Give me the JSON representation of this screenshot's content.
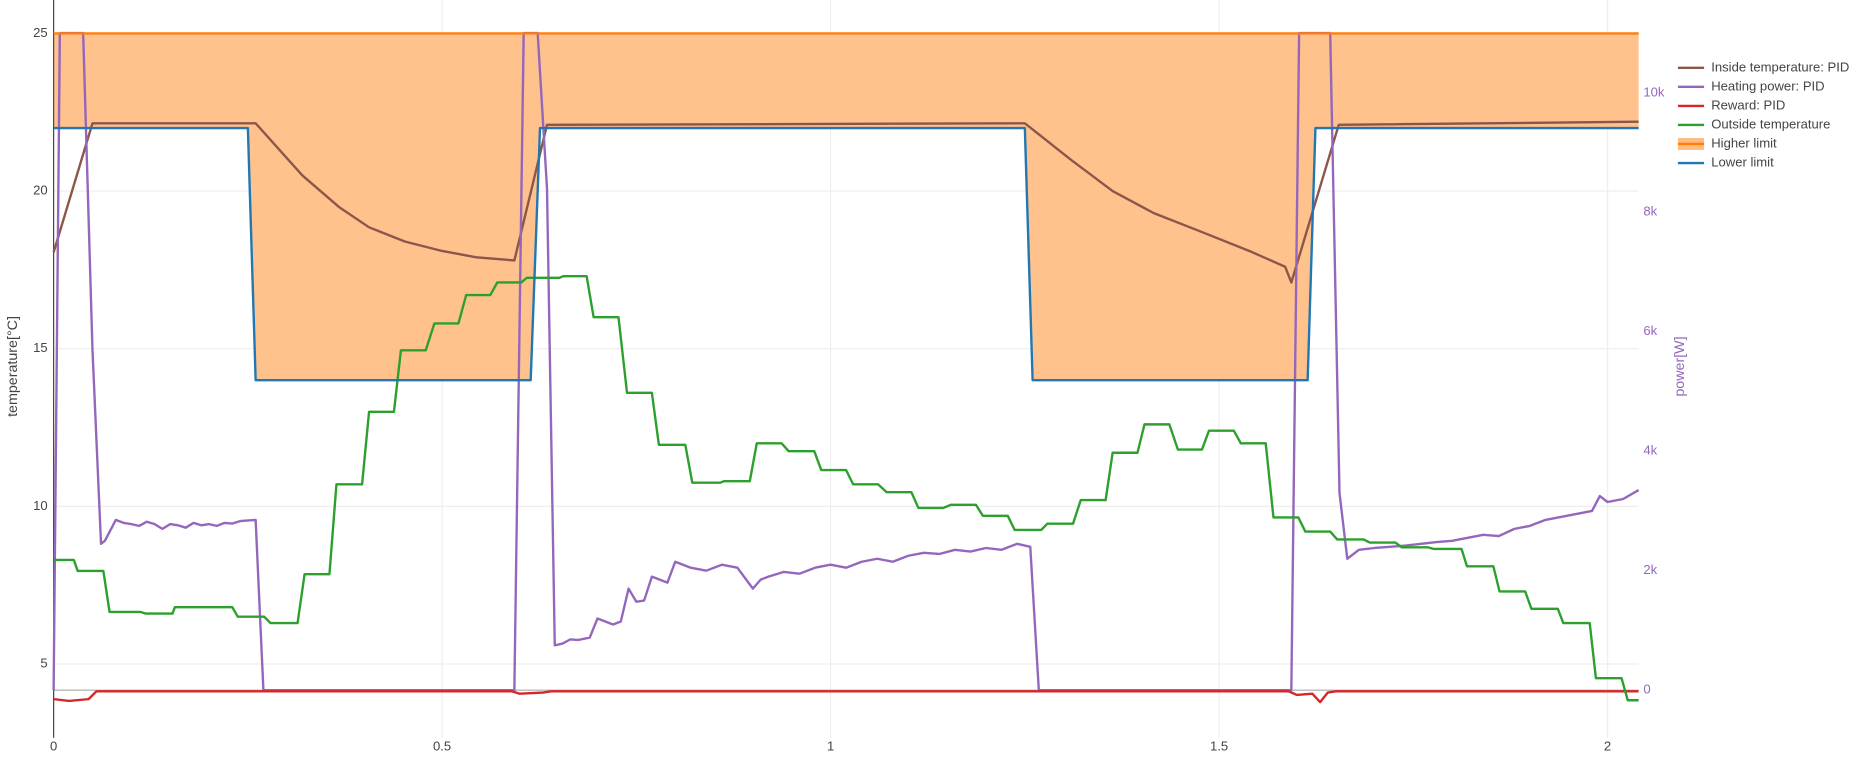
{
  "chart_data": {
    "type": "line",
    "y_title": "temperature[°C]",
    "y2_title": "power[W]",
    "xlim": [
      0,
      2.04
    ],
    "xticks": [
      0,
      0.5,
      1,
      1.5,
      2
    ],
    "ylim": [
      2.66,
      26.06
    ],
    "yticks": [
      5,
      10,
      15,
      20,
      25
    ],
    "y2lim": [
      -797,
      11554
    ],
    "y2ticks": [
      0,
      {
        "value": 2000,
        "label": "2k"
      },
      {
        "value": 4000,
        "label": "4k"
      },
      {
        "value": 6000,
        "label": "6k"
      },
      {
        "value": 8000,
        "label": "8k"
      },
      {
        "value": 10000,
        "label": "10k"
      }
    ],
    "y2_color": "#9467bd",
    "grid": true,
    "zeroline": true,
    "legend": "top-right",
    "series": [
      {
        "name": "Inside temperature: PID",
        "color": "#8c564b",
        "x": [
          0,
          0.05,
          0.26,
          0.32,
          0.367,
          0.406,
          0.452,
          0.5,
          0.544,
          0.593,
          0.635,
          1.25,
          1.309,
          1.363,
          1.416,
          1.478,
          1.539,
          1.585,
          1.593,
          1.654,
          2.04
        ],
        "values": [
          18.06,
          22.15,
          22.15,
          20.5,
          19.5,
          18.85,
          18.4,
          18.1,
          17.9,
          17.8,
          22.1,
          22.15,
          21.0,
          20.0,
          19.3,
          18.7,
          18.1,
          17.6,
          17.1,
          22.1,
          22.2
        ]
      },
      {
        "name": "Heating power: PID",
        "color": "#9467bd",
        "axis": "y2",
        "x": [
          0,
          0.008,
          0.038,
          0.05,
          0.061,
          0.066,
          0.08,
          0.09,
          0.1,
          0.11,
          0.12,
          0.13,
          0.14,
          0.15,
          0.16,
          0.17,
          0.18,
          0.19,
          0.2,
          0.21,
          0.22,
          0.23,
          0.24,
          0.26,
          0.27,
          0.593,
          0.605,
          0.623,
          0.635,
          0.645,
          0.655,
          0.665,
          0.675,
          0.69,
          0.7,
          0.71,
          0.72,
          0.73,
          0.74,
          0.75,
          0.76,
          0.77,
          0.78,
          0.79,
          0.8,
          0.82,
          0.84,
          0.86,
          0.88,
          0.9,
          0.91,
          0.92,
          0.94,
          0.96,
          0.98,
          1.0,
          1.02,
          1.04,
          1.06,
          1.08,
          1.1,
          1.12,
          1.14,
          1.16,
          1.18,
          1.2,
          1.22,
          1.24,
          1.257,
          1.268,
          1.593,
          1.603,
          1.643,
          1.655,
          1.665,
          1.68,
          1.7,
          1.72,
          1.74,
          1.76,
          1.78,
          1.8,
          1.82,
          1.84,
          1.86,
          1.88,
          1.9,
          1.92,
          1.94,
          1.96,
          1.98,
          1.99,
          2.0,
          2.02,
          2.04
        ],
        "values": [
          0,
          11000,
          11000,
          5700,
          2450,
          2500,
          2850,
          2800,
          2780,
          2750,
          2820,
          2780,
          2700,
          2780,
          2760,
          2720,
          2800,
          2760,
          2780,
          2750,
          2800,
          2790,
          2830,
          2850,
          0,
          0,
          11000,
          11000,
          8400,
          750,
          780,
          850,
          840,
          880,
          1200,
          1150,
          1100,
          1150,
          1700,
          1480,
          1500,
          1900,
          1850,
          1800,
          2150,
          2050,
          2000,
          2100,
          2050,
          1700,
          1850,
          1900,
          1980,
          1950,
          2050,
          2100,
          2050,
          2150,
          2200,
          2150,
          2250,
          2300,
          2280,
          2350,
          2320,
          2380,
          2350,
          2450,
          2400,
          0,
          0,
          11000,
          11000,
          3300,
          2200,
          2350,
          2380,
          2400,
          2420,
          2450,
          2480,
          2500,
          2550,
          2600,
          2580,
          2700,
          2750,
          2850,
          2900,
          2950,
          3000,
          3250,
          3150,
          3200,
          3350
        ]
      },
      {
        "name": "Reward: PID",
        "color": "#d62728",
        "axis": "y2",
        "x": [
          0,
          0.02,
          0.045,
          0.055,
          0.59,
          0.6,
          0.63,
          0.64,
          1.59,
          1.6,
          1.62,
          1.63,
          1.64,
          1.65,
          2.04
        ],
        "values": [
          -150,
          -180,
          -150,
          -20,
          -20,
          -60,
          -40,
          -20,
          -20,
          -80,
          -60,
          -200,
          -40,
          -20,
          -20
        ]
      },
      {
        "name": "Outside temperature",
        "color": "#2ca02c",
        "x": [
          0,
          0.026,
          0.031,
          0.064,
          0.072,
          0.112,
          0.118,
          0.153,
          0.156,
          0.23,
          0.237,
          0.271,
          0.279,
          0.314,
          0.323,
          0.355,
          0.364,
          0.397,
          0.406,
          0.438,
          0.447,
          0.479,
          0.49,
          0.521,
          0.531,
          0.562,
          0.571,
          0.602,
          0.609,
          0.651,
          0.656,
          0.686,
          0.695,
          0.727,
          0.738,
          0.77,
          0.779,
          0.813,
          0.822,
          0.858,
          0.863,
          0.896,
          0.905,
          0.937,
          0.946,
          0.979,
          0.988,
          1.02,
          1.029,
          1.061,
          1.072,
          1.104,
          1.113,
          1.145,
          1.155,
          1.187,
          1.196,
          1.228,
          1.237,
          1.271,
          1.279,
          1.312,
          1.322,
          1.354,
          1.363,
          1.395,
          1.404,
          1.436,
          1.447,
          1.478,
          1.487,
          1.519,
          1.528,
          1.56,
          1.57,
          1.602,
          1.611,
          1.643,
          1.652,
          1.686,
          1.694,
          1.727,
          1.735,
          1.769,
          1.776,
          1.812,
          1.819,
          1.853,
          1.861,
          1.894,
          1.902,
          1.936,
          1.943,
          1.977,
          1.985,
          2.018,
          2.026,
          2.04
        ],
        "values": [
          8.3,
          8.3,
          7.95,
          7.95,
          6.65,
          6.65,
          6.6,
          6.6,
          6.8,
          6.8,
          6.5,
          6.5,
          6.3,
          6.3,
          7.85,
          7.85,
          10.7,
          10.7,
          13.0,
          13.0,
          14.95,
          14.95,
          15.8,
          15.8,
          16.7,
          16.7,
          17.1,
          17.1,
          17.25,
          17.25,
          17.3,
          17.3,
          16.0,
          16.0,
          13.6,
          13.6,
          11.95,
          11.95,
          10.75,
          10.75,
          10.8,
          10.8,
          12.0,
          12.0,
          11.75,
          11.75,
          11.15,
          11.15,
          10.7,
          10.7,
          10.45,
          10.45,
          9.95,
          9.95,
          10.05,
          10.05,
          9.7,
          9.7,
          9.25,
          9.25,
          9.45,
          9.45,
          10.2,
          10.2,
          11.7,
          11.7,
          12.6,
          12.6,
          11.8,
          11.8,
          12.4,
          12.4,
          12.0,
          12.0,
          9.65,
          9.65,
          9.2,
          9.2,
          8.95,
          8.95,
          8.85,
          8.85,
          8.7,
          8.7,
          8.65,
          8.65,
          8.1,
          8.1,
          7.3,
          7.3,
          6.75,
          6.75,
          6.3,
          6.3,
          4.55,
          4.55,
          3.85,
          3.85
        ]
      },
      {
        "name": "Higher limit",
        "color": "#ff7f0e",
        "fill": "tonext",
        "fill_color": "#ffbb80",
        "x": [
          0,
          2.04
        ],
        "values": [
          25,
          25
        ]
      },
      {
        "name": "Lower limit",
        "color": "#1f77b4",
        "x": [
          0,
          0.25,
          0.26,
          0.614,
          0.626,
          1.25,
          1.26,
          1.614,
          1.624,
          2.04
        ],
        "values": [
          22,
          22,
          14,
          14,
          22,
          22,
          14,
          14,
          22,
          22
        ]
      }
    ]
  }
}
